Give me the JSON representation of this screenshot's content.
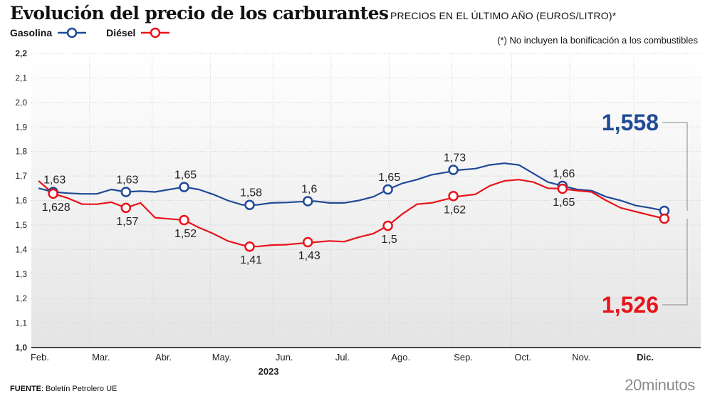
{
  "header": {
    "title": "Evolución del precio de los carburantes",
    "subtitle": "PRECIOS EN EL ÚLTIMO AÑO (EUROS/LITRO)*",
    "note": "(*) No incluyen la bonificación a los combustibles"
  },
  "legend": [
    {
      "name": "Gasolina",
      "color": "#1f4a96"
    },
    {
      "name": "Diésel",
      "color": "#e8141b"
    }
  ],
  "footer": {
    "source_label": "FUENTE",
    "source_text": ": Boletín Petrolero UE",
    "brand": "20minutos"
  },
  "chart_data": {
    "type": "line",
    "title": "Evolución del precio de los carburantes",
    "subtitle": "PRECIOS EN EL ÚLTIMO AÑO (EUROS/LITRO)*",
    "xlabel": "2023",
    "ylabel": "",
    "ylim": [
      1.0,
      2.2
    ],
    "yticks": [
      "1,0",
      "1,1",
      "1,2",
      "1,3",
      "1,4",
      "1,5",
      "1,6",
      "1,7",
      "1,8",
      "1,9",
      "2,0",
      "2,1",
      "2,2"
    ],
    "xlim": [
      0,
      46
    ],
    "x_ticks": [
      {
        "label": "Feb.",
        "x": 0
      },
      {
        "label": "Mar.",
        "x": 4
      },
      {
        "label": "Abr.",
        "x": 8.3
      },
      {
        "label": "May.",
        "x": 12.3
      },
      {
        "label": "Jun.",
        "x": 16.6
      },
      {
        "label": "Jul.",
        "x": 20.6
      },
      {
        "label": "Ago.",
        "x": 24.6
      },
      {
        "label": "Sep.",
        "x": 28.9
      },
      {
        "label": "Oct.",
        "x": 33.0
      },
      {
        "label": "Nov.",
        "x": 37.0
      },
      {
        "label": "Dic.",
        "x": 41.4
      }
    ],
    "grid": true,
    "legend_position": "top-left",
    "series": [
      {
        "name": "Gasolina",
        "color": "#1f4a96",
        "points": [
          [
            0.5,
            1.65
          ],
          [
            1.5,
            1.635
          ],
          [
            2.5,
            1.63
          ],
          [
            3.5,
            1.627
          ],
          [
            4.5,
            1.627
          ],
          [
            5.5,
            1.645
          ],
          [
            6.5,
            1.635
          ],
          [
            7.5,
            1.638
          ],
          [
            8.5,
            1.635
          ],
          [
            9.5,
            1.645
          ],
          [
            10.5,
            1.655
          ],
          [
            11.5,
            1.645
          ],
          [
            12.5,
            1.625
          ],
          [
            13.5,
            1.6
          ],
          [
            14.5,
            1.582
          ],
          [
            15.5,
            1.582
          ],
          [
            16.5,
            1.59
          ],
          [
            17.5,
            1.592
          ],
          [
            18.5,
            1.595
          ],
          [
            19.5,
            1.597
          ],
          [
            20.5,
            1.59
          ],
          [
            21.5,
            1.59
          ],
          [
            22.5,
            1.6
          ],
          [
            23.5,
            1.615
          ],
          [
            24.5,
            1.645
          ],
          [
            25.5,
            1.67
          ],
          [
            26.5,
            1.685
          ],
          [
            27.5,
            1.705
          ],
          [
            28.5,
            1.715
          ],
          [
            29.5,
            1.725
          ],
          [
            30.5,
            1.73
          ],
          [
            31.5,
            1.745
          ],
          [
            32.5,
            1.752
          ],
          [
            33.5,
            1.745
          ],
          [
            34.5,
            1.71
          ],
          [
            35.5,
            1.675
          ],
          [
            36.5,
            1.66
          ],
          [
            37.5,
            1.645
          ],
          [
            38.5,
            1.64
          ],
          [
            39.5,
            1.615
          ],
          [
            40.5,
            1.6
          ],
          [
            41.5,
            1.58
          ],
          [
            42.5,
            1.57
          ],
          [
            43.5,
            1.558
          ]
        ],
        "markers": [
          {
            "x": 1.5,
            "y": 1.635,
            "label": "1,63",
            "pos": "above"
          },
          {
            "x": 6.5,
            "y": 1.635,
            "label": "1,63",
            "pos": "above"
          },
          {
            "x": 10.5,
            "y": 1.655,
            "label": "1,65",
            "pos": "above"
          },
          {
            "x": 15.0,
            "y": 1.582,
            "label": "1,58",
            "pos": "above"
          },
          {
            "x": 19.0,
            "y": 1.597,
            "label": "1,6",
            "pos": "above"
          },
          {
            "x": 24.5,
            "y": 1.645,
            "label": "1,65",
            "pos": "above"
          },
          {
            "x": 29.0,
            "y": 1.725,
            "label": "1,73",
            "pos": "above"
          },
          {
            "x": 36.5,
            "y": 1.66,
            "label": "1,66",
            "pos": "above"
          },
          {
            "x": 43.5,
            "y": 1.558,
            "label": "",
            "pos": "none"
          }
        ],
        "final_value_label": "1,558"
      },
      {
        "name": "Diésel",
        "color": "#e8141b",
        "points": [
          [
            0.5,
            1.68
          ],
          [
            1.5,
            1.628
          ],
          [
            2.5,
            1.61
          ],
          [
            3.5,
            1.585
          ],
          [
            4.5,
            1.585
          ],
          [
            5.5,
            1.593
          ],
          [
            6.5,
            1.57
          ],
          [
            7.5,
            1.59
          ],
          [
            8.5,
            1.53
          ],
          [
            9.5,
            1.525
          ],
          [
            10.5,
            1.52
          ],
          [
            11.5,
            1.49
          ],
          [
            12.5,
            1.465
          ],
          [
            13.5,
            1.435
          ],
          [
            14.5,
            1.418
          ],
          [
            15.5,
            1.412
          ],
          [
            16.5,
            1.418
          ],
          [
            17.5,
            1.42
          ],
          [
            18.5,
            1.425
          ],
          [
            19.5,
            1.43
          ],
          [
            20.5,
            1.435
          ],
          [
            21.5,
            1.432
          ],
          [
            22.5,
            1.45
          ],
          [
            23.5,
            1.465
          ],
          [
            24.5,
            1.497
          ],
          [
            25.5,
            1.545
          ],
          [
            26.5,
            1.585
          ],
          [
            27.5,
            1.59
          ],
          [
            28.5,
            1.605
          ],
          [
            29.5,
            1.618
          ],
          [
            30.5,
            1.625
          ],
          [
            31.5,
            1.66
          ],
          [
            32.5,
            1.68
          ],
          [
            33.5,
            1.685
          ],
          [
            34.5,
            1.675
          ],
          [
            35.5,
            1.65
          ],
          [
            36.5,
            1.648
          ],
          [
            37.5,
            1.64
          ],
          [
            38.5,
            1.635
          ],
          [
            39.5,
            1.6
          ],
          [
            40.5,
            1.57
          ],
          [
            41.5,
            1.555
          ],
          [
            42.5,
            1.54
          ],
          [
            43.5,
            1.526
          ]
        ],
        "markers": [
          {
            "x": 1.5,
            "y": 1.628,
            "label": "1,628",
            "pos": "below"
          },
          {
            "x": 6.5,
            "y": 1.57,
            "label": "1,57",
            "pos": "below"
          },
          {
            "x": 10.5,
            "y": 1.52,
            "label": "1,52",
            "pos": "below"
          },
          {
            "x": 15.0,
            "y": 1.412,
            "label": "1,41",
            "pos": "below"
          },
          {
            "x": 19.0,
            "y": 1.43,
            "label": "1,43",
            "pos": "below"
          },
          {
            "x": 24.5,
            "y": 1.497,
            "label": "1,5",
            "pos": "below"
          },
          {
            "x": 29.0,
            "y": 1.618,
            "label": "1,62",
            "pos": "below"
          },
          {
            "x": 36.5,
            "y": 1.648,
            "label": "1,65",
            "pos": "below"
          },
          {
            "x": 43.5,
            "y": 1.526,
            "label": "",
            "pos": "none"
          }
        ],
        "final_value_label": "1,526"
      }
    ]
  }
}
